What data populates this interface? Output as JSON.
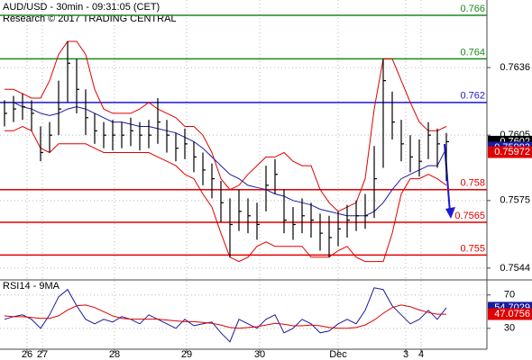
{
  "chart_data": {
    "type": "ohlc",
    "title": "AUD/USD - 30min - 09:31:05 (CET)",
    "subtitle": "Research © 2017 TRADING CENTRAL",
    "x": [
      0,
      1,
      2,
      3,
      4,
      5,
      6,
      7,
      8,
      9,
      10,
      11,
      12,
      13,
      14,
      15,
      16,
      17,
      18,
      19,
      20,
      21,
      22,
      23,
      24,
      25,
      26,
      27,
      28,
      29,
      30,
      31,
      32,
      33,
      34,
      35,
      36,
      37,
      38,
      39,
      40,
      41,
      42,
      43,
      44,
      45,
      46,
      47,
      48,
      49
    ],
    "xlim": [
      -0.5,
      53.5
    ],
    "xticks": [
      {
        "value": 2.5,
        "label": "26"
      },
      {
        "value": 4.2,
        "label": "27"
      },
      {
        "value": 12.2,
        "label": "28"
      },
      {
        "value": 20.2,
        "label": "29"
      },
      {
        "value": 28.3,
        "label": "30"
      },
      {
        "value": 37,
        "label": "Dec"
      },
      {
        "value": 44.5,
        "label": "3"
      },
      {
        "value": 46.2,
        "label": "4"
      }
    ],
    "ylim": [
      0.7539,
      0.7667
    ],
    "yticks": [
      0.7544,
      0.7575,
      0.7605,
      0.7636
    ],
    "grid": true,
    "color": "#000000",
    "high": [
      0.7621,
      0.7623,
      0.7624,
      0.7621,
      0.7609,
      0.7611,
      0.763,
      0.7648,
      0.764,
      0.7626,
      0.7615,
      0.7611,
      0.7612,
      0.7611,
      0.7613,
      0.7611,
      0.7612,
      0.7622,
      0.7612,
      0.7606,
      0.7608,
      0.7602,
      0.7597,
      0.7592,
      0.7584,
      0.7576,
      0.758,
      0.7576,
      0.7574,
      0.7591,
      0.7594,
      0.758,
      0.7572,
      0.7576,
      0.7574,
      0.7569,
      0.7568,
      0.757,
      0.7573,
      0.7575,
      0.7578,
      0.76,
      0.764,
      0.7625,
      0.7612,
      0.7605,
      0.7603,
      0.7611,
      0.7608,
      0.7606
    ],
    "low": [
      0.7609,
      0.7611,
      0.7612,
      0.7607,
      0.7593,
      0.7597,
      0.7605,
      0.762,
      0.7615,
      0.7605,
      0.7601,
      0.7599,
      0.7598,
      0.7599,
      0.76,
      0.7598,
      0.7599,
      0.7601,
      0.7597,
      0.7593,
      0.7594,
      0.7588,
      0.7582,
      0.7576,
      0.7565,
      0.7549,
      0.7561,
      0.756,
      0.7557,
      0.757,
      0.7578,
      0.756,
      0.7557,
      0.756,
      0.7558,
      0.7552,
      0.7549,
      0.7554,
      0.7558,
      0.7561,
      0.7562,
      0.7567,
      0.759,
      0.7603,
      0.7593,
      0.7588,
      0.7586,
      0.7594,
      0.759,
      0.7584
    ],
    "close": [
      0.7615,
      0.7617,
      0.7618,
      0.7615,
      0.7597,
      0.7605,
      0.7617,
      0.7638,
      0.7626,
      0.7613,
      0.7607,
      0.7605,
      0.7605,
      0.7605,
      0.7607,
      0.7605,
      0.7605,
      0.7611,
      0.7605,
      0.7599,
      0.7601,
      0.7595,
      0.7589,
      0.7585,
      0.7574,
      0.7564,
      0.757,
      0.7568,
      0.7564,
      0.7582,
      0.7587,
      0.7566,
      0.7564,
      0.7568,
      0.7566,
      0.756,
      0.7558,
      0.7562,
      0.7566,
      0.7568,
      0.7568,
      0.7585,
      0.763,
      0.7611,
      0.7601,
      0.7595,
      0.7593,
      0.7605,
      0.7601,
      0.7602
    ],
    "overlays": [
      {
        "color": "#e00000",
        "values": [
          0.7626,
          0.7626,
          0.7624,
          0.7622,
          0.7622,
          0.763,
          0.7642,
          0.7648,
          0.7648,
          0.7642,
          0.7626,
          0.7617,
          0.7615,
          0.7615,
          0.7615,
          0.7617,
          0.762,
          0.7617,
          0.7615,
          0.7613,
          0.7609,
          0.7609,
          0.7605,
          0.7597,
          0.7585,
          0.758,
          0.7582,
          0.7587,
          0.7591,
          0.7595,
          0.7595,
          0.7597,
          0.7593,
          0.7591,
          0.7591,
          0.758,
          0.7574,
          0.757,
          0.7572,
          0.7574,
          0.7585,
          0.7617,
          0.764,
          0.764,
          0.763,
          0.762,
          0.7611,
          0.7607,
          0.7607,
          0.7609
        ]
      },
      {
        "color": "#e00000",
        "values": [
          0.7607,
          0.7607,
          0.7609,
          0.7607,
          0.7599,
          0.7597,
          0.7601,
          0.7601,
          0.7601,
          0.7601,
          0.7599,
          0.7597,
          0.7597,
          0.7597,
          0.7597,
          0.7597,
          0.7597,
          0.7595,
          0.7593,
          0.7591,
          0.7587,
          0.7585,
          0.7578,
          0.7572,
          0.756,
          0.7549,
          0.7547,
          0.7549,
          0.7554,
          0.7556,
          0.7554,
          0.7554,
          0.7554,
          0.7554,
          0.7549,
          0.7549,
          0.7549,
          0.7552,
          0.7554,
          0.7549,
          0.7547,
          0.7547,
          0.7547,
          0.756,
          0.7578,
          0.7585,
          0.7585,
          0.7587,
          0.7585,
          0.7582
        ]
      },
      {
        "color": "#1a1aa0",
        "values": [
          0.762,
          0.762,
          0.7618,
          0.7617,
          0.7615,
          0.7614,
          0.7615,
          0.7617,
          0.7618,
          0.7617,
          0.7615,
          0.7613,
          0.7611,
          0.7611,
          0.761,
          0.7609,
          0.7609,
          0.7608,
          0.7607,
          0.7606,
          0.7604,
          0.7602,
          0.7599,
          0.7595,
          0.7591,
          0.7587,
          0.7585,
          0.7582,
          0.7581,
          0.758,
          0.7578,
          0.7577,
          0.7575,
          0.7574,
          0.7573,
          0.7571,
          0.757,
          0.7569,
          0.7568,
          0.7568,
          0.7568,
          0.757,
          0.7574,
          0.758,
          0.7585,
          0.7587,
          0.7589,
          0.7591,
          0.7591,
          0.7599
        ]
      }
    ],
    "levels": [
      {
        "value": 0.766,
        "color": "#1a8a1a"
      },
      {
        "value": 0.764,
        "color": "#1a8a1a"
      },
      {
        "value": 0.762,
        "color": "#1a1ad0"
      },
      {
        "value": 0.758,
        "color": "#e00000"
      },
      {
        "value": 0.7565,
        "color": "#e00000"
      },
      {
        "value": 0.755,
        "color": "#e00000"
      }
    ],
    "price_markers": [
      {
        "value": 0.7602,
        "color": "#000000"
      },
      {
        "value": 0.75993,
        "color": "#1a1aa0"
      },
      {
        "value": 0.75972,
        "color": "#e00000"
      }
    ],
    "indicator": {
      "title": "RSI14 - 9MA",
      "ylim": [
        5,
        87
      ],
      "yticks": [
        30,
        70
      ],
      "series": [
        {
          "color": "#1a1aa0",
          "values": [
            40.8,
            44.1,
            46.2,
            40.8,
            30.0,
            46.2,
            67.8,
            76.5,
            57.0,
            40.8,
            35.4,
            40.8,
            37.6,
            44.1,
            40.8,
            35.4,
            46.2,
            40.8,
            35.4,
            30.0,
            40.8,
            33.2,
            35.4,
            37.6,
            24.6,
            13.8,
            40.8,
            35.4,
            30.0,
            40.8,
            46.2,
            24.6,
            30.0,
            40.8,
            35.4,
            24.6,
            26.8,
            35.4,
            40.8,
            35.4,
            51.6,
            78.6,
            76.5,
            57.0,
            46.2,
            35.4,
            40.8,
            51.6,
            40.8,
            54.7
          ]
        },
        {
          "color": "#e00000",
          "values": [
            45,
            44,
            44,
            43,
            42,
            42,
            45,
            52,
            57,
            58,
            55,
            50,
            45,
            42,
            41,
            41,
            41,
            41,
            40,
            39,
            38,
            38,
            37,
            36,
            34,
            31,
            30,
            31,
            32,
            34,
            36,
            35,
            33,
            33,
            34,
            33,
            31,
            30,
            30,
            31,
            34,
            40,
            48,
            55,
            58,
            56,
            52,
            49,
            47,
            47
          ]
        }
      ],
      "markers": [
        {
          "value": 54.7029,
          "color": "#1a1aa0"
        },
        {
          "value": 47.0756,
          "color": "#e00000"
        }
      ]
    }
  }
}
